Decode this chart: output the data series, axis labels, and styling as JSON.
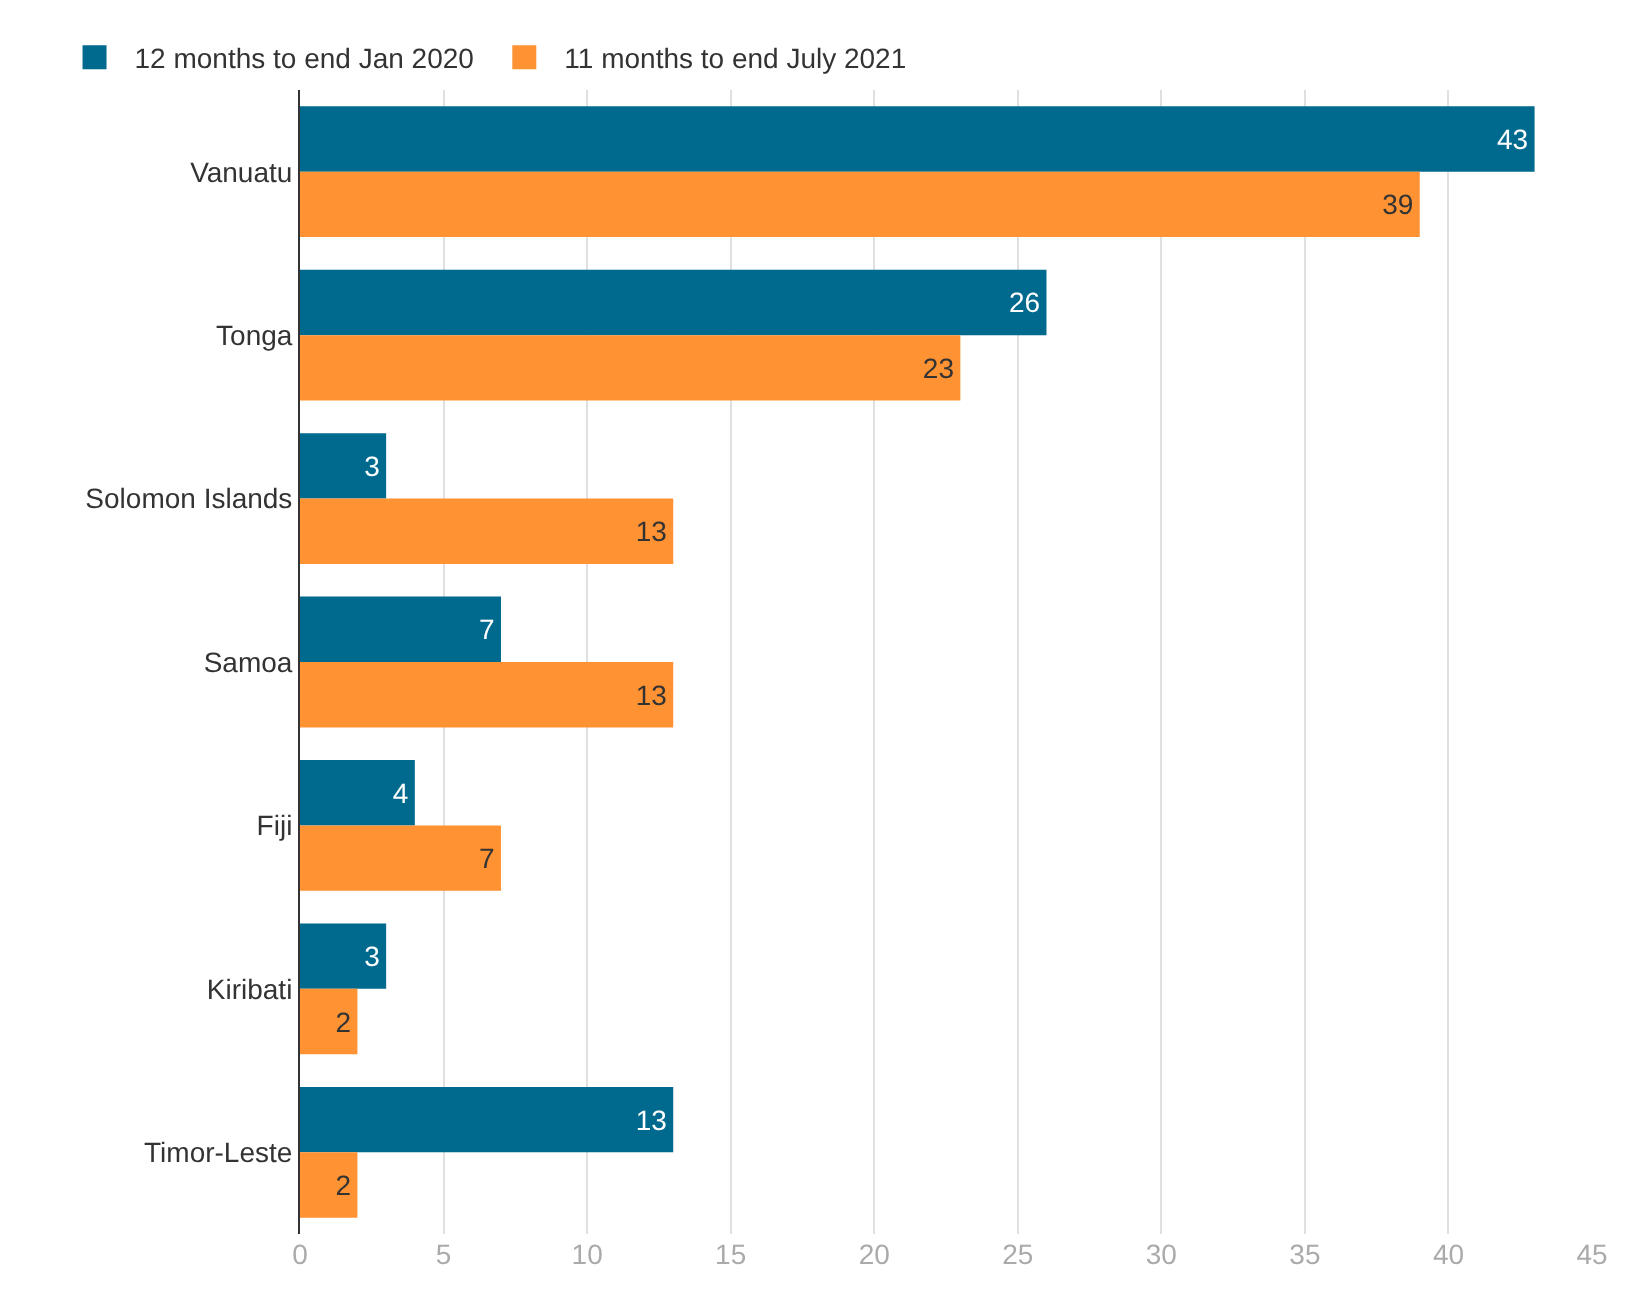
{
  "chart_data": {
    "type": "bar",
    "orientation": "horizontal",
    "categories": [
      "Vanuatu",
      "Tonga",
      "Solomon Islands",
      "Samoa",
      "Fiji",
      "Kiribati",
      "Timor-Leste"
    ],
    "series": [
      {
        "name": "12 months to end Jan 2020",
        "color": "#006a8e",
        "values": [
          43,
          26,
          3,
          7,
          4,
          3,
          13
        ]
      },
      {
        "name": "11 months to end July 2021",
        "color": "#ff9232",
        "values": [
          39,
          23,
          13,
          13,
          7,
          2,
          2
        ]
      }
    ],
    "xlim": [
      0,
      45
    ],
    "xticks": [
      0,
      5,
      10,
      15,
      20,
      25,
      30,
      35,
      40,
      45
    ],
    "grid": "x",
    "legend": "top left",
    "data_labels": true
  }
}
